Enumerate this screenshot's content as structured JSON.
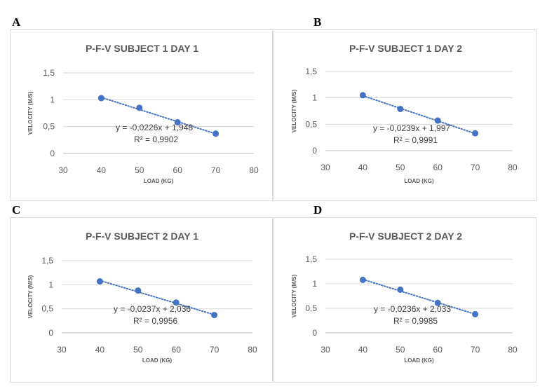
{
  "panels": [
    {
      "letter": "A"
    },
    {
      "letter": "B"
    },
    {
      "letter": "C"
    },
    {
      "letter": "D"
    }
  ],
  "colors": {
    "series": "#4472c4",
    "axis": "#bfbfbf",
    "grid": "#d9d9d9",
    "text": "#595959"
  },
  "chart_data": [
    {
      "type": "scatter",
      "title": "P-F-V SUBJECT 1 DAY 1",
      "xlabel": "LOAD (KG)",
      "ylabel": "VELOCITY (M/S)",
      "xlim": [
        30,
        80
      ],
      "ylim": [
        0,
        1.5
      ],
      "x_ticks": [
        "30",
        "40",
        "50",
        "60",
        "70",
        "80"
      ],
      "y_ticks": [
        "0",
        "0,5",
        "1",
        "1,5"
      ],
      "grid": true,
      "x": [
        40,
        50,
        60,
        70
      ],
      "y": [
        1.03,
        0.85,
        0.58,
        0.37
      ],
      "trendline": {
        "type": "linear",
        "slope": -0.0226,
        "intercept": 1.948,
        "equation": "y = -0,0226x + 1,948",
        "r2": "R² = 0,9902"
      }
    },
    {
      "type": "scatter",
      "title": "P-F-V SUBJECT 1 DAY 2",
      "xlabel": "LOAD (KG)",
      "ylabel": "VELOCITY (M/S)",
      "xlim": [
        30,
        80
      ],
      "ylim": [
        0,
        1.5
      ],
      "x_ticks": [
        "30",
        "40",
        "50",
        "60",
        "70",
        "80"
      ],
      "y_ticks": [
        "0",
        "0,5",
        "1",
        "1,5"
      ],
      "grid": true,
      "x": [
        40,
        50,
        60,
        70
      ],
      "y": [
        1.05,
        0.79,
        0.57,
        0.33
      ],
      "trendline": {
        "type": "linear",
        "slope": -0.0239,
        "intercept": 1.997,
        "equation": "y = -0,0239x + 1,997",
        "r2": "R² = 0,9991"
      }
    },
    {
      "type": "scatter",
      "title": "P-F-V SUBJECT 2 DAY 1",
      "xlabel": "LOAD (KG)",
      "ylabel": "VELOCITY (M/S)",
      "xlim": [
        30,
        80
      ],
      "ylim": [
        0,
        1.5
      ],
      "x_ticks": [
        "30",
        "40",
        "50",
        "60",
        "70",
        "80"
      ],
      "y_ticks": [
        "0",
        "0,5",
        "1",
        "1,5"
      ],
      "grid": true,
      "x": [
        40,
        50,
        60,
        70
      ],
      "y": [
        1.07,
        0.88,
        0.63,
        0.37
      ],
      "trendline": {
        "type": "linear",
        "slope": -0.0237,
        "intercept": 2.036,
        "equation": "y = -0,0237x + 2,036",
        "r2": "R² = 0,9956"
      }
    },
    {
      "type": "scatter",
      "title": "P-F-V SUBJECT 2 DAY 2",
      "xlabel": "LOAD (KG)",
      "ylabel": "VELOCITY (M/S)",
      "xlim": [
        30,
        80
      ],
      "ylim": [
        0,
        1.5
      ],
      "x_ticks": [
        "30",
        "40",
        "50",
        "60",
        "70",
        "80"
      ],
      "y_ticks": [
        "0",
        "0,5",
        "1",
        "1,5"
      ],
      "grid": true,
      "x": [
        40,
        50,
        60,
        70
      ],
      "y": [
        1.08,
        0.88,
        0.61,
        0.38
      ],
      "trendline": {
        "type": "linear",
        "slope": -0.0236,
        "intercept": 2.033,
        "equation": "y = -0,0236x + 2,033",
        "r2": "R² = 0,9985"
      }
    }
  ]
}
